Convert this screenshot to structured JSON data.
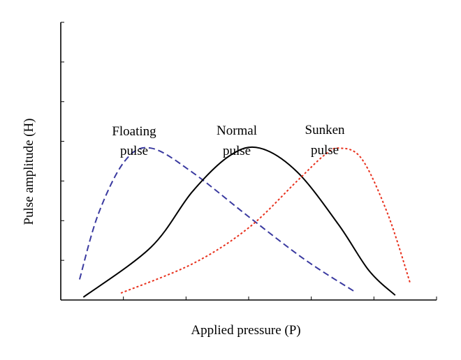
{
  "chart_data": {
    "type": "line",
    "xlabel": "Applied pressure (P)",
    "ylabel": "Pulse amplitude (H)",
    "xlim": [
      0,
      10
    ],
    "ylim": [
      0,
      10
    ],
    "grid": false,
    "series": [
      {
        "key": "floating",
        "label_lines": [
          "Floating",
          "pulse"
        ],
        "color": "#3a3aa0",
        "dash": "dashed",
        "points": [
          [
            0.5,
            0.74
          ],
          [
            1.0,
            3.1
          ],
          [
            1.7,
            5.0
          ],
          [
            2.4,
            5.47
          ],
          [
            3.5,
            4.6
          ],
          [
            5,
            3.0
          ],
          [
            6.5,
            1.45
          ],
          [
            7.8,
            0.32
          ]
        ]
      },
      {
        "key": "normal",
        "label_lines": [
          "Normal",
          "pulse"
        ],
        "color": "#000000",
        "dash": "solid",
        "points": [
          [
            0.6,
            0.1
          ],
          [
            2.4,
            1.9
          ],
          [
            3.5,
            3.9
          ],
          [
            4.5,
            5.2
          ],
          [
            5.3,
            5.47
          ],
          [
            6.3,
            4.6
          ],
          [
            7.4,
            2.7
          ],
          [
            8.2,
            1.06
          ],
          [
            8.9,
            0.17
          ]
        ]
      },
      {
        "key": "sunken",
        "label_lines": [
          "Sunken",
          "pulse"
        ],
        "color": "#e8301c",
        "dash": "dotted",
        "points": [
          [
            1.6,
            0.25
          ],
          [
            3.5,
            1.3
          ],
          [
            5,
            2.6
          ],
          [
            6.3,
            4.3
          ],
          [
            7,
            5.2
          ],
          [
            7.4,
            5.47
          ],
          [
            8.0,
            5.1
          ],
          [
            8.7,
            3.1
          ],
          [
            9.3,
            0.6
          ]
        ]
      }
    ]
  }
}
